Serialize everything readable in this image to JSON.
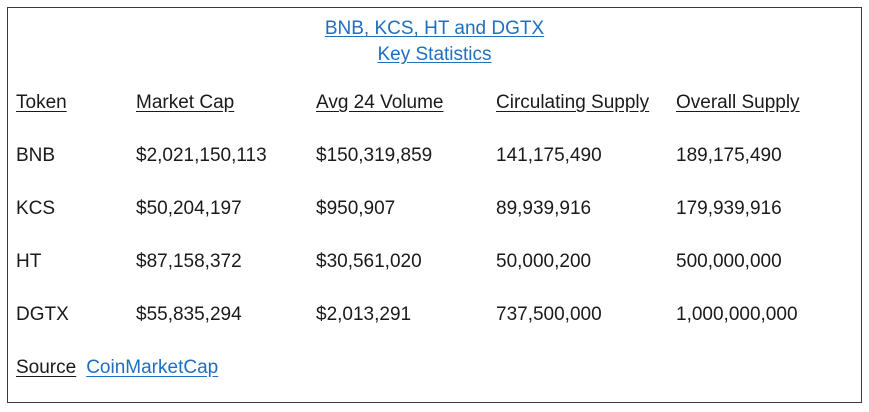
{
  "title": {
    "line1": "BNB, KCS, HT and DGTX",
    "line2": "Key Statistics"
  },
  "table": {
    "headers": [
      "Token",
      "Market Cap",
      "Avg 24 Volume",
      "Circulating Supply",
      "Overall Supply"
    ],
    "rows": [
      [
        "BNB",
        "$2,021,150,113",
        "$150,319,859",
        "141,175,490",
        "189,175,490"
      ],
      [
        "KCS",
        "$50,204,197",
        "$950,907",
        "89,939,916",
        "179,939,916"
      ],
      [
        "HT",
        "$87,158,372",
        "$30,561,020",
        "50,000,200",
        "500,000,000"
      ],
      [
        "DGTX",
        "$55,835,294",
        "$2,013,291",
        "737,500,000",
        "1,000,000,000"
      ]
    ]
  },
  "source": {
    "label": "Source",
    "link_text": "CoinMarketCap"
  },
  "colors": {
    "link": "#1f6fbf",
    "border": "#3a3a3a",
    "text": "#1a1a1a"
  }
}
